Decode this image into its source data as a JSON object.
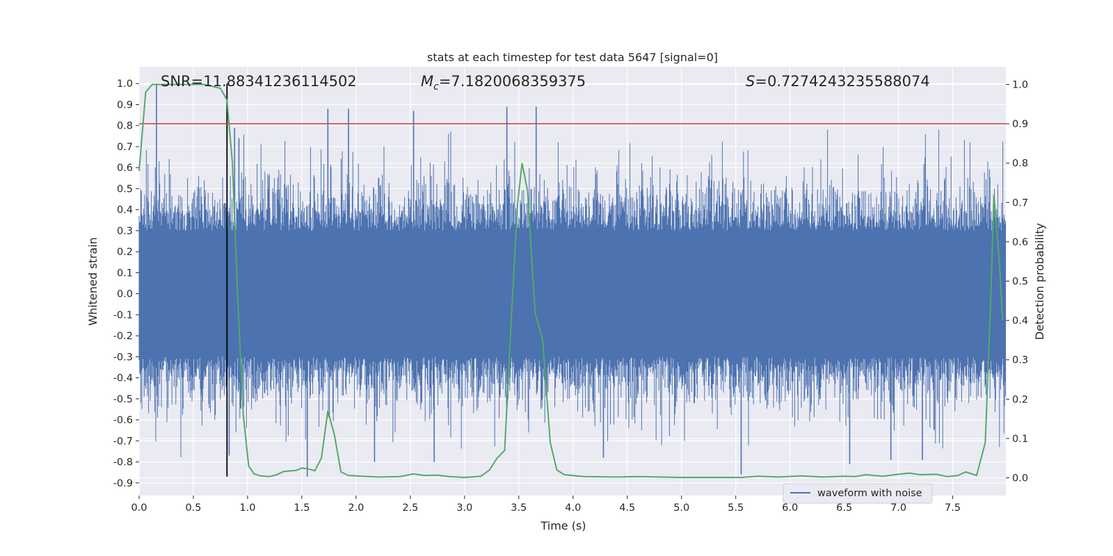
{
  "chart_data": {
    "type": "line",
    "title": "stats at each timestep for test data 5647 [signal=0]",
    "xlabel": "Time (s)",
    "ylabel": "Whitened strain",
    "y2label": "Detection probability",
    "xlim": [
      0.0,
      7.99
    ],
    "ylim": [
      -0.96,
      1.08
    ],
    "y2lim": [
      -0.045,
      1.045
    ],
    "xticks": [
      "0.0",
      "0.5",
      "1.0",
      "1.5",
      "2.0",
      "2.5",
      "3.0",
      "3.5",
      "4.0",
      "4.5",
      "5.0",
      "5.5",
      "6.0",
      "6.5",
      "7.0",
      "7.5"
    ],
    "yticks": [
      "1.0",
      "0.9",
      "0.8",
      "0.7",
      "0.6",
      "0.5",
      "0.4",
      "0.3",
      "0.2",
      "0.1",
      "0.0",
      "-0.1",
      "-0.2",
      "-0.3",
      "-0.4",
      "-0.5",
      "-0.6",
      "-0.7",
      "-0.8",
      "-0.9"
    ],
    "y2ticks": [
      "1.0",
      "0.9",
      "0.8",
      "0.7",
      "0.6",
      "0.5",
      "0.4",
      "0.3",
      "0.2",
      "0.1",
      "0.0"
    ],
    "grid": true,
    "legend": {
      "position": "lower-right",
      "entries": [
        "waveform with noise"
      ]
    },
    "annotations": {
      "snr_label": "SNR=11.88341236114502",
      "mc_symbol": "M",
      "mc_subscript": "c",
      "mc_value": "=7.1820068359375",
      "s_symbol": "S",
      "s_value": "=0.7274243235588074"
    },
    "threshold_line": {
      "axis": "y2",
      "value": 0.9,
      "color": "#c44e52"
    },
    "vertical_marker": {
      "x": 0.81,
      "ymin": -0.87,
      "ymax": 1.0,
      "color": "#000000"
    },
    "waveform": {
      "name": "waveform with noise",
      "color": "#4c72b0",
      "x_range": [
        0.0,
        7.99
      ],
      "spikes": [
        {
          "x": 0.16,
          "y": 1.0
        },
        {
          "x": 0.81,
          "y": 0.92
        },
        {
          "x": 0.83,
          "y": -0.77
        },
        {
          "x": 0.88,
          "y": 0.79
        },
        {
          "x": 0.92,
          "y": 0.74
        },
        {
          "x": 1.55,
          "y": -0.87
        },
        {
          "x": 1.74,
          "y": 0.88
        },
        {
          "x": 1.93,
          "y": 0.88
        },
        {
          "x": 2.17,
          "y": -0.8
        },
        {
          "x": 2.53,
          "y": 0.87
        },
        {
          "x": 2.72,
          "y": -0.8
        },
        {
          "x": 3.39,
          "y": 0.89
        },
        {
          "x": 3.66,
          "y": 0.89
        },
        {
          "x": 4.28,
          "y": -0.78
        },
        {
          "x": 5.55,
          "y": -0.86
        },
        {
          "x": 6.55,
          "y": -0.81
        },
        {
          "x": 6.93,
          "y": -0.79
        },
        {
          "x": 7.22,
          "y": -0.79
        }
      ]
    },
    "probability": {
      "color": "#55a868",
      "axis": "y2",
      "points": [
        [
          0.0,
          0.78
        ],
        [
          0.06,
          0.98
        ],
        [
          0.12,
          1.0
        ],
        [
          0.25,
          1.0
        ],
        [
          0.4,
          1.0
        ],
        [
          0.6,
          1.0
        ],
        [
          0.75,
          0.99
        ],
        [
          0.81,
          0.96
        ],
        [
          0.86,
          0.8
        ],
        [
          0.91,
          0.45
        ],
        [
          0.96,
          0.16
        ],
        [
          1.01,
          0.03
        ],
        [
          1.06,
          0.01
        ],
        [
          1.12,
          0.005
        ],
        [
          1.2,
          0.003
        ],
        [
          1.27,
          0.008
        ],
        [
          1.33,
          0.016
        ],
        [
          1.45,
          0.019
        ],
        [
          1.5,
          0.025
        ],
        [
          1.57,
          0.022
        ],
        [
          1.62,
          0.018
        ],
        [
          1.68,
          0.05
        ],
        [
          1.74,
          0.17
        ],
        [
          1.8,
          0.11
        ],
        [
          1.86,
          0.015
        ],
        [
          1.93,
          0.006
        ],
        [
          2.0,
          0.005
        ],
        [
          2.2,
          0.002
        ],
        [
          2.4,
          0.003
        ],
        [
          2.53,
          0.01
        ],
        [
          2.63,
          0.006
        ],
        [
          2.75,
          0.007
        ],
        [
          2.86,
          0.003
        ],
        [
          3.0,
          0.001
        ],
        [
          3.15,
          0.004
        ],
        [
          3.23,
          0.02
        ],
        [
          3.3,
          0.05
        ],
        [
          3.37,
          0.07
        ],
        [
          3.43,
          0.4
        ],
        [
          3.49,
          0.7
        ],
        [
          3.53,
          0.8
        ],
        [
          3.58,
          0.73
        ],
        [
          3.65,
          0.42
        ],
        [
          3.72,
          0.35
        ],
        [
          3.79,
          0.09
        ],
        [
          3.85,
          0.02
        ],
        [
          3.92,
          0.008
        ],
        [
          4.1,
          0.003
        ],
        [
          4.4,
          0.002
        ],
        [
          4.6,
          0.003
        ],
        [
          4.8,
          0.002
        ],
        [
          5.0,
          0.001
        ],
        [
          5.3,
          0.001
        ],
        [
          5.55,
          0.001
        ],
        [
          5.7,
          0.004
        ],
        [
          5.9,
          0.002
        ],
        [
          6.1,
          0.005
        ],
        [
          6.3,
          0.002
        ],
        [
          6.5,
          0.004
        ],
        [
          6.6,
          0.003
        ],
        [
          6.7,
          0.008
        ],
        [
          6.85,
          0.004
        ],
        [
          7.0,
          0.009
        ],
        [
          7.1,
          0.012
        ],
        [
          7.2,
          0.008
        ],
        [
          7.35,
          0.009
        ],
        [
          7.45,
          0.003
        ],
        [
          7.55,
          0.006
        ],
        [
          7.62,
          0.015
        ],
        [
          7.72,
          0.006
        ],
        [
          7.8,
          0.09
        ],
        [
          7.85,
          0.45
        ],
        [
          7.88,
          0.72
        ],
        [
          7.93,
          0.55
        ],
        [
          7.96,
          0.4
        ]
      ]
    }
  }
}
